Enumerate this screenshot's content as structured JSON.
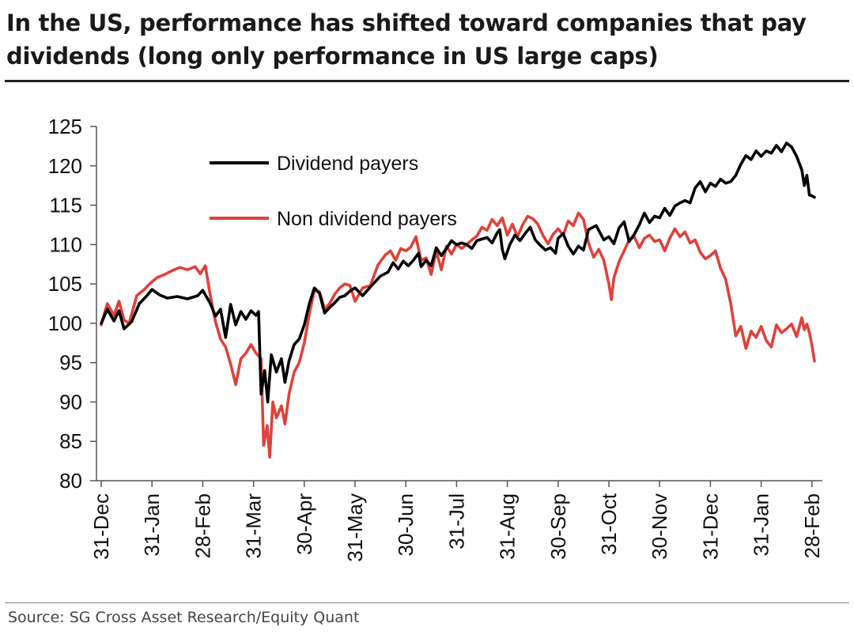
{
  "title": "In the US, performance has shifted toward companies that pay dividends (long only performance in US large caps)",
  "source": "Source: SG Cross Asset Research/Equity Quant",
  "chart_data": {
    "type": "line",
    "ylim": [
      80,
      125
    ],
    "yticks": [
      80,
      85,
      90,
      95,
      100,
      105,
      110,
      115,
      120,
      125
    ],
    "xticks": [
      "31-Dec",
      "31-Jan",
      "28-Feb",
      "31-Mar",
      "30-Apr",
      "31-May",
      "30-Jun",
      "31-Jul",
      "31-Aug",
      "30-Sep",
      "31-Oct",
      "30-Nov",
      "31-Dec",
      "31-Jan",
      "28-Feb"
    ],
    "x_range": [
      0,
      14.45
    ],
    "legend_position": "top-left",
    "series": [
      {
        "name": "Dividend payers",
        "color": "#000000",
        "points": [
          [
            0,
            100
          ],
          [
            0.12,
            101.8
          ],
          [
            0.25,
            100.3
          ],
          [
            0.35,
            101.6
          ],
          [
            0.45,
            99.3
          ],
          [
            0.6,
            100.2
          ],
          [
            0.75,
            102.5
          ],
          [
            0.9,
            103.5
          ],
          [
            1.0,
            104.3
          ],
          [
            1.15,
            103.6
          ],
          [
            1.3,
            103.2
          ],
          [
            1.5,
            103.4
          ],
          [
            1.7,
            103.1
          ],
          [
            1.9,
            103.5
          ],
          [
            2.0,
            104.2
          ],
          [
            2.15,
            102.5
          ],
          [
            2.25,
            100.9
          ],
          [
            2.35,
            101.8
          ],
          [
            2.45,
            98.2
          ],
          [
            2.55,
            102.4
          ],
          [
            2.65,
            99.8
          ],
          [
            2.75,
            101.5
          ],
          [
            2.85,
            100.5
          ],
          [
            2.95,
            101.6
          ],
          [
            3.05,
            101.0
          ],
          [
            3.1,
            101.5
          ],
          [
            3.15,
            91.0
          ],
          [
            3.22,
            94.0
          ],
          [
            3.28,
            90.0
          ],
          [
            3.35,
            96.0
          ],
          [
            3.45,
            93.8
          ],
          [
            3.55,
            95.5
          ],
          [
            3.62,
            92.5
          ],
          [
            3.7,
            95.2
          ],
          [
            3.8,
            97.3
          ],
          [
            3.9,
            98.0
          ],
          [
            4.0,
            99.8
          ],
          [
            4.1,
            102.5
          ],
          [
            4.2,
            104.5
          ],
          [
            4.3,
            103.8
          ],
          [
            4.4,
            101.3
          ],
          [
            4.5,
            102.0
          ],
          [
            4.6,
            102.6
          ],
          [
            4.7,
            103.3
          ],
          [
            4.8,
            103.5
          ],
          [
            4.9,
            104.1
          ],
          [
            5.0,
            104.5
          ],
          [
            5.15,
            103.5
          ],
          [
            5.3,
            104.6
          ],
          [
            5.5,
            106.0
          ],
          [
            5.65,
            106.5
          ],
          [
            5.75,
            107.7
          ],
          [
            5.85,
            106.9
          ],
          [
            5.95,
            107.9
          ],
          [
            6.05,
            107.3
          ],
          [
            6.15,
            108.0
          ],
          [
            6.25,
            108.9
          ],
          [
            6.3,
            107.2
          ],
          [
            6.4,
            108.0
          ],
          [
            6.5,
            107.3
          ],
          [
            6.6,
            109.6
          ],
          [
            6.7,
            108.6
          ],
          [
            6.8,
            109.5
          ],
          [
            6.9,
            110.5
          ],
          [
            7.0,
            110.0
          ],
          [
            7.1,
            110.2
          ],
          [
            7.2,
            110.0
          ],
          [
            7.3,
            109.5
          ],
          [
            7.4,
            110.5
          ],
          [
            7.5,
            110.7
          ],
          [
            7.6,
            110.9
          ],
          [
            7.7,
            110.2
          ],
          [
            7.8,
            111.5
          ],
          [
            7.85,
            111.9
          ],
          [
            7.9,
            109.4
          ],
          [
            7.95,
            108.2
          ],
          [
            8.05,
            110.0
          ],
          [
            8.15,
            111.2
          ],
          [
            8.25,
            110.5
          ],
          [
            8.35,
            111.4
          ],
          [
            8.45,
            112.2
          ],
          [
            8.55,
            110.6
          ],
          [
            8.65,
            109.9
          ],
          [
            8.75,
            109.3
          ],
          [
            8.85,
            109.6
          ],
          [
            8.95,
            108.9
          ],
          [
            9.0,
            110.8
          ],
          [
            9.1,
            111.4
          ],
          [
            9.2,
            109.8
          ],
          [
            9.3,
            108.8
          ],
          [
            9.4,
            109.8
          ],
          [
            9.5,
            109.3
          ],
          [
            9.6,
            111.9
          ],
          [
            9.75,
            112.4
          ],
          [
            9.9,
            110.6
          ],
          [
            10.0,
            111.0
          ],
          [
            10.1,
            110.1
          ],
          [
            10.2,
            112.1
          ],
          [
            10.3,
            112.9
          ],
          [
            10.4,
            110.4
          ],
          [
            10.5,
            111.3
          ],
          [
            10.6,
            112.5
          ],
          [
            10.7,
            114.0
          ],
          [
            10.8,
            112.8
          ],
          [
            10.9,
            113.6
          ],
          [
            11.0,
            113.4
          ],
          [
            11.1,
            114.6
          ],
          [
            11.2,
            113.7
          ],
          [
            11.3,
            114.9
          ],
          [
            11.4,
            115.3
          ],
          [
            11.5,
            115.6
          ],
          [
            11.6,
            115.3
          ],
          [
            11.7,
            117.2
          ],
          [
            11.8,
            118.0
          ],
          [
            11.9,
            116.7
          ],
          [
            12.0,
            117.8
          ],
          [
            12.1,
            117.4
          ],
          [
            12.2,
            118.3
          ],
          [
            12.3,
            117.8
          ],
          [
            12.4,
            118.0
          ],
          [
            12.5,
            118.8
          ],
          [
            12.6,
            120.2
          ],
          [
            12.7,
            121.3
          ],
          [
            12.8,
            120.8
          ],
          [
            12.9,
            121.9
          ],
          [
            13.0,
            121.2
          ],
          [
            13.1,
            121.9
          ],
          [
            13.2,
            121.6
          ],
          [
            13.3,
            122.6
          ],
          [
            13.4,
            121.8
          ],
          [
            13.5,
            122.9
          ],
          [
            13.6,
            122.4
          ],
          [
            13.7,
            121.2
          ],
          [
            13.8,
            119.5
          ],
          [
            13.85,
            117.5
          ],
          [
            13.9,
            118.8
          ],
          [
            13.95,
            116.3
          ],
          [
            14.0,
            116.2
          ],
          [
            14.05,
            116.0
          ]
        ]
      },
      {
        "name": "Non dividend payers",
        "color": "#e0413a",
        "points": [
          [
            0,
            99.8
          ],
          [
            0.12,
            102.5
          ],
          [
            0.25,
            101.0
          ],
          [
            0.35,
            102.8
          ],
          [
            0.45,
            100.4
          ],
          [
            0.55,
            100.0
          ],
          [
            0.7,
            103.5
          ],
          [
            0.85,
            104.3
          ],
          [
            0.95,
            105.0
          ],
          [
            1.1,
            105.8
          ],
          [
            1.25,
            106.2
          ],
          [
            1.4,
            106.7
          ],
          [
            1.55,
            107.1
          ],
          [
            1.7,
            106.8
          ],
          [
            1.85,
            107.2
          ],
          [
            1.95,
            106.3
          ],
          [
            2.05,
            107.3
          ],
          [
            2.15,
            103.5
          ],
          [
            2.25,
            100.2
          ],
          [
            2.35,
            98.0
          ],
          [
            2.45,
            97.0
          ],
          [
            2.55,
            94.8
          ],
          [
            2.65,
            92.2
          ],
          [
            2.75,
            95.5
          ],
          [
            2.85,
            96.2
          ],
          [
            2.95,
            97.3
          ],
          [
            3.05,
            96.2
          ],
          [
            3.15,
            95.5
          ],
          [
            3.2,
            84.5
          ],
          [
            3.27,
            87.0
          ],
          [
            3.32,
            83.0
          ],
          [
            3.38,
            90.0
          ],
          [
            3.45,
            88.0
          ],
          [
            3.55,
            89.5
          ],
          [
            3.62,
            87.2
          ],
          [
            3.7,
            91.0
          ],
          [
            3.8,
            93.8
          ],
          [
            3.9,
            95.0
          ],
          [
            4.0,
            97.5
          ],
          [
            4.1,
            101.2
          ],
          [
            4.2,
            104.2
          ],
          [
            4.3,
            104.0
          ],
          [
            4.4,
            101.8
          ],
          [
            4.5,
            102.5
          ],
          [
            4.6,
            103.7
          ],
          [
            4.7,
            104.5
          ],
          [
            4.8,
            105.0
          ],
          [
            4.9,
            104.8
          ],
          [
            5.0,
            102.8
          ],
          [
            5.15,
            104.5
          ],
          [
            5.3,
            104.8
          ],
          [
            5.45,
            107.4
          ],
          [
            5.6,
            108.7
          ],
          [
            5.7,
            109.2
          ],
          [
            5.8,
            108.0
          ],
          [
            5.9,
            109.5
          ],
          [
            6.0,
            109.2
          ],
          [
            6.1,
            109.7
          ],
          [
            6.2,
            111.0
          ],
          [
            6.3,
            108.0
          ],
          [
            6.4,
            108.3
          ],
          [
            6.5,
            106.2
          ],
          [
            6.6,
            109.2
          ],
          [
            6.7,
            106.8
          ],
          [
            6.8,
            109.8
          ],
          [
            6.9,
            108.8
          ],
          [
            7.0,
            110.0
          ],
          [
            7.1,
            109.5
          ],
          [
            7.2,
            110.0
          ],
          [
            7.3,
            110.6
          ],
          [
            7.4,
            111.1
          ],
          [
            7.5,
            112.2
          ],
          [
            7.6,
            111.8
          ],
          [
            7.7,
            113.2
          ],
          [
            7.8,
            112.4
          ],
          [
            7.9,
            113.4
          ],
          [
            8.0,
            111.2
          ],
          [
            8.1,
            112.6
          ],
          [
            8.2,
            111.0
          ],
          [
            8.3,
            112.5
          ],
          [
            8.4,
            113.6
          ],
          [
            8.5,
            113.3
          ],
          [
            8.6,
            112.6
          ],
          [
            8.7,
            111.2
          ],
          [
            8.8,
            110.1
          ],
          [
            8.9,
            111.3
          ],
          [
            9.0,
            112.0
          ],
          [
            9.1,
            111.2
          ],
          [
            9.2,
            113.0
          ],
          [
            9.3,
            112.4
          ],
          [
            9.4,
            114.0
          ],
          [
            9.5,
            113.2
          ],
          [
            9.6,
            110.2
          ],
          [
            9.7,
            108.4
          ],
          [
            9.8,
            109.4
          ],
          [
            9.9,
            108.0
          ],
          [
            10.0,
            105.0
          ],
          [
            10.05,
            103.0
          ],
          [
            10.1,
            105.8
          ],
          [
            10.2,
            107.8
          ],
          [
            10.3,
            109.2
          ],
          [
            10.4,
            110.6
          ],
          [
            10.5,
            111.0
          ],
          [
            10.6,
            109.6
          ],
          [
            10.7,
            110.8
          ],
          [
            10.8,
            111.2
          ],
          [
            10.9,
            110.4
          ],
          [
            11.0,
            110.6
          ],
          [
            11.1,
            109.2
          ],
          [
            11.2,
            110.8
          ],
          [
            11.3,
            112.0
          ],
          [
            11.4,
            111.0
          ],
          [
            11.5,
            111.6
          ],
          [
            11.6,
            110.2
          ],
          [
            11.7,
            110.6
          ],
          [
            11.8,
            109.0
          ],
          [
            11.9,
            108.2
          ],
          [
            12.0,
            108.6
          ],
          [
            12.1,
            109.2
          ],
          [
            12.2,
            107.0
          ],
          [
            12.3,
            105.6
          ],
          [
            12.4,
            102.5
          ],
          [
            12.5,
            98.4
          ],
          [
            12.6,
            99.6
          ],
          [
            12.7,
            96.8
          ],
          [
            12.8,
            99.0
          ],
          [
            12.9,
            98.2
          ],
          [
            13.0,
            99.6
          ],
          [
            13.1,
            97.8
          ],
          [
            13.2,
            97.0
          ],
          [
            13.3,
            99.8
          ],
          [
            13.4,
            98.8
          ],
          [
            13.5,
            99.3
          ],
          [
            13.6,
            99.9
          ],
          [
            13.7,
            98.3
          ],
          [
            13.8,
            100.7
          ],
          [
            13.85,
            99.2
          ],
          [
            13.9,
            99.9
          ],
          [
            13.95,
            98.8
          ],
          [
            14.0,
            97.2
          ],
          [
            14.05,
            95.2
          ]
        ]
      }
    ]
  }
}
